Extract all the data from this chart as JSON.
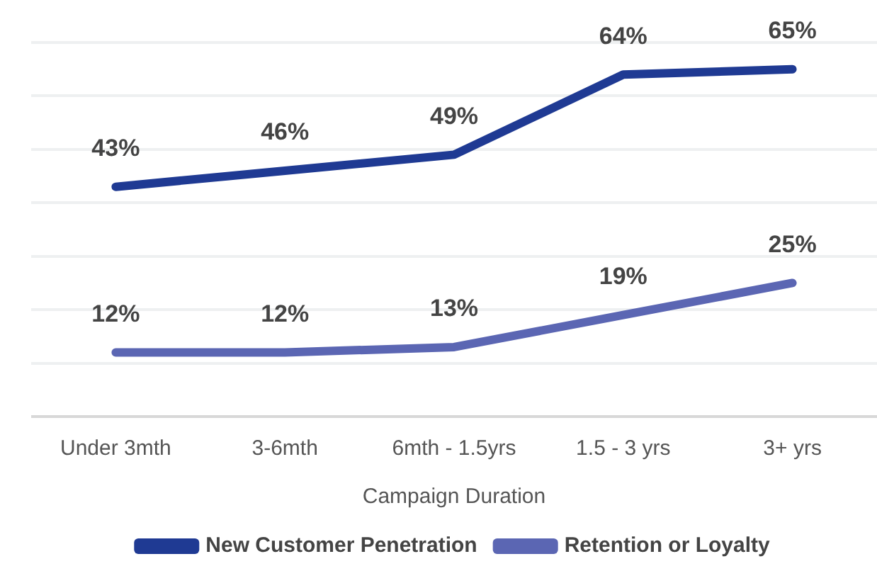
{
  "chart_data": {
    "type": "line",
    "xlabel": "Campaign Duration",
    "categories": [
      "Under 3mth",
      "3-6mth",
      "6mth - 1.5yrs",
      "1.5 - 3 yrs",
      "3+ yrs"
    ],
    "series": [
      {
        "name": "New Customer Penetration",
        "color": "#1f3a93",
        "values": [
          43,
          46,
          49,
          64,
          65
        ],
        "value_labels": [
          "43%",
          "46%",
          "49%",
          "64%",
          "65%"
        ]
      },
      {
        "name": "Retention or Loyalty",
        "color": "#5b66b3",
        "values": [
          12,
          12,
          13,
          19,
          25
        ],
        "value_labels": [
          "12%",
          "12%",
          "13%",
          "19%",
          "25%"
        ]
      }
    ],
    "ylim": [
      0,
      70
    ],
    "yticks": [
      {
        "value": 0,
        "label": null
      },
      {
        "value": 10,
        "label": null
      },
      {
        "value": 20,
        "label": null
      },
      {
        "value": 30,
        "label": null
      },
      {
        "value": 40,
        "label": null
      },
      {
        "value": 50,
        "label": null
      },
      {
        "value": 60,
        "label": null
      },
      {
        "value": 70,
        "label": null
      }
    ],
    "tick_labels": "x",
    "grid": "y",
    "legend": "bottom",
    "marker": "none",
    "line_style": "solid"
  }
}
